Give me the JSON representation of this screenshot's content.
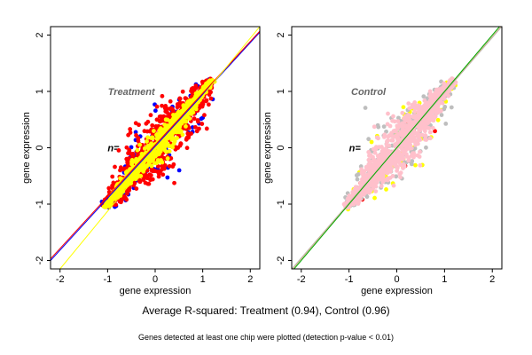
{
  "caption": "Average R-squared: Treatment (0.94), Control (0.96)",
  "footnote": "Genes detected at least one chip were plotted (detection p-value < 0.01)",
  "chart_data": [
    {
      "type": "scatter",
      "title": "Treatment",
      "annotation": "n=",
      "xlabel": "gene expression",
      "ylabel": "gene expression",
      "xlim": [
        -2.2,
        2.2
      ],
      "ylim": [
        -2.15,
        2.15
      ],
      "xticks": [
        "-2",
        "-1",
        "0",
        "1",
        "2"
      ],
      "yticks": [
        "-2",
        "-1",
        "0",
        "1",
        "2"
      ],
      "grid": false,
      "point_colors": [
        "#0000ff",
        "#ff0000",
        "#ffff00"
      ],
      "fit_lines": [
        {
          "color": "#0000ff",
          "from": [
            -2.2,
            -2.0
          ],
          "to": [
            2.2,
            2.05
          ]
        },
        {
          "color": "#ff0000",
          "from": [
            -2.2,
            -1.97
          ],
          "to": [
            2.2,
            2.07
          ]
        },
        {
          "color": "#ffff00",
          "from": [
            -2.0,
            -2.15
          ],
          "to": [
            2.2,
            2.15
          ]
        }
      ]
    },
    {
      "type": "scatter",
      "title": "Control",
      "annotation": "n=",
      "xlabel": "gene expression",
      "ylabel": "gene expression",
      "xlim": [
        -2.2,
        2.2
      ],
      "ylim": [
        -2.15,
        2.15
      ],
      "xticks": [
        "-2",
        "-1",
        "0",
        "1",
        "2"
      ],
      "yticks": [
        "-2",
        "-1",
        "0",
        "1",
        "2"
      ],
      "grid": false,
      "point_colors": [
        "#00ff00",
        "#ff0000",
        "#ffff00",
        "#bebebe",
        "#ffc0cb"
      ],
      "fit_lines": [
        {
          "color": "#bebebe",
          "from": [
            -2.2,
            -2.15
          ],
          "to": [
            2.2,
            2.15
          ]
        },
        {
          "color": "#d2b48c",
          "from": [
            -2.18,
            -2.15
          ],
          "to": [
            2.2,
            2.17
          ]
        },
        {
          "color": "#00aa00",
          "from": [
            -2.15,
            -2.15
          ],
          "to": [
            2.2,
            2.2
          ]
        }
      ]
    }
  ]
}
